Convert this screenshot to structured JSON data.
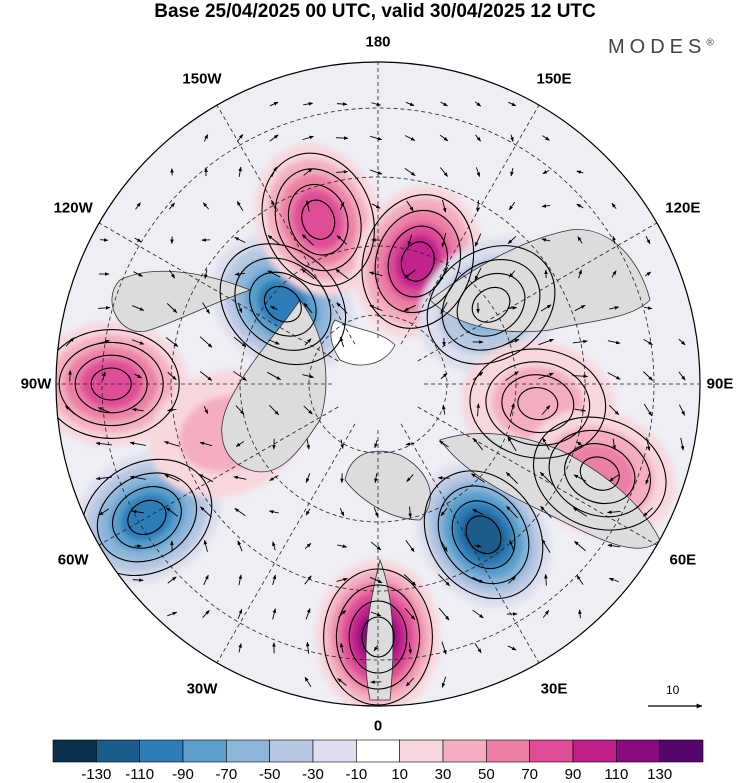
{
  "title": "Base 25/04/2025 00 UTC, valid 30/04/2025 12 UTC",
  "brand": "MODES",
  "brand_mark": "®",
  "longitude_labels": [
    "180",
    "150E",
    "120E",
    "90E",
    "60E",
    "30E",
    "0",
    "30W",
    "60W",
    "90W",
    "120W",
    "150W"
  ],
  "vector_reference": "10",
  "colorbar": {
    "ticks": [
      "-130",
      "-110",
      "-90",
      "-70",
      "-50",
      "-30",
      "-10",
      "10",
      "30",
      "50",
      "70",
      "90",
      "110",
      "130"
    ],
    "colors": [
      "#0b2f4e",
      "#1c5c8c",
      "#2e7db8",
      "#5a9fcc",
      "#8cb6da",
      "#b8c8e2",
      "#dddfee",
      "#ffffff",
      "#f8d8dd",
      "#f4aebf",
      "#ec7fa6",
      "#de4d96",
      "#c1208b",
      "#8c0a7f",
      "#55066e"
    ]
  },
  "anomalies": [
    {
      "lon": -130,
      "lat": 63,
      "value": -100
    },
    {
      "lon": -160,
      "lat": 52,
      "value": 70
    },
    {
      "lon": 162,
      "lat": 62,
      "value": 100
    },
    {
      "lon": 125,
      "lat": 60,
      "value": -50
    },
    {
      "lon": 83,
      "lat": 55,
      "value": 45
    },
    {
      "lon": 68,
      "lat": 38,
      "value": 60
    },
    {
      "lon": 35,
      "lat": 50,
      "value": -110
    },
    {
      "lon": 0,
      "lat": 35,
      "value": 120
    },
    {
      "lon": -60,
      "lat": 32,
      "value": -90
    },
    {
      "lon": -90,
      "lat": 32,
      "value": 85
    },
    {
      "lon": -72,
      "lat": 55,
      "value": 30
    }
  ]
}
